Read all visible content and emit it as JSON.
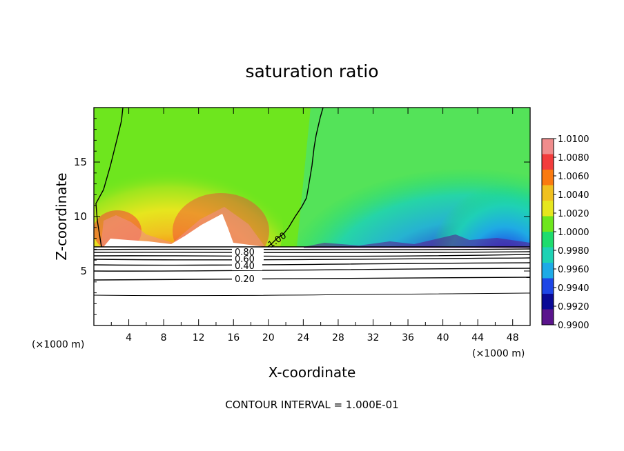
{
  "chart_data": {
    "type": "heatmap",
    "title": "saturation ratio",
    "xlabel": "X-coordinate",
    "ylabel": "Z-coordinate",
    "x_unit_left": "(×1000 m)",
    "x_unit_right": "(×1000 m)",
    "xlim": [
      0,
      50
    ],
    "ylim": [
      0,
      20
    ],
    "x_ticks": [
      4,
      8,
      12,
      16,
      20,
      24,
      28,
      32,
      36,
      40,
      44,
      48
    ],
    "y_ticks": [
      5,
      10,
      15
    ],
    "colorbar": {
      "levels": [
        "1.0100",
        "1.0080",
        "1.0060",
        "1.0040",
        "1.0020",
        "1.0000",
        "0.9980",
        "0.9960",
        "0.9940",
        "0.9920",
        "0.9900"
      ],
      "colors": [
        "#f08c8c",
        "#f23c3c",
        "#fa7a10",
        "#f0c020",
        "#e6e61e",
        "#6ee61e",
        "#1edc6e",
        "#1ed2b4",
        "#1eaae6",
        "#1e46e6",
        "#0a0a96",
        "#5a148c"
      ]
    },
    "contour_labels": [
      "0.80",
      "0.60",
      "0.40",
      "0.20",
      "1.00"
    ],
    "contour_lines": {
      "lower_z": [
        6.9,
        6.6,
        6.2,
        5.8,
        5.4,
        4.4,
        2.9
      ],
      "label_value_x": 1.0
    },
    "grid": false,
    "footer": "CONTOUR INTERVAL = 1.000E-01"
  }
}
